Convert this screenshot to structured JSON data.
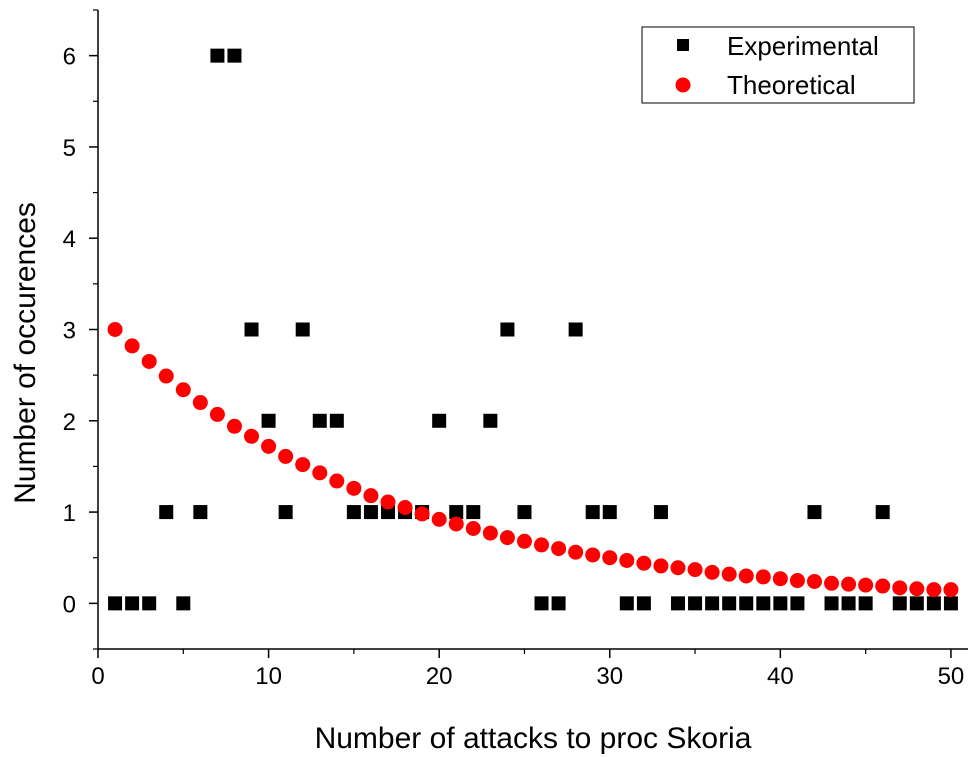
{
  "chart_data": {
    "type": "scatter",
    "title": "",
    "xlabel": "Number of attacks to proc Skoria",
    "ylabel": "Number of occurences",
    "xlim": [
      0,
      51
    ],
    "ylim": [
      -0.5,
      6.5
    ],
    "x_ticks": [
      0,
      10,
      20,
      30,
      40,
      50
    ],
    "y_ticks": [
      0,
      1,
      2,
      3,
      4,
      5,
      6
    ],
    "x_tick_labels": [
      "0",
      "10",
      "20",
      "30",
      "40",
      "50"
    ],
    "y_tick_labels": [
      "0",
      "1",
      "2",
      "3",
      "4",
      "5",
      "6"
    ],
    "grid": false,
    "legend_position": "top-right",
    "series": [
      {
        "name": "Experimental",
        "marker": "square",
        "color": "#000000",
        "x": [
          1,
          2,
          3,
          4,
          5,
          6,
          7,
          8,
          9,
          10,
          11,
          12,
          13,
          14,
          15,
          16,
          17,
          18,
          19,
          20,
          21,
          22,
          23,
          24,
          25,
          26,
          27,
          28,
          29,
          30,
          31,
          32,
          33,
          34,
          35,
          36,
          37,
          38,
          39,
          40,
          41,
          42,
          43,
          44,
          45,
          46,
          47,
          48,
          49,
          50
        ],
        "y": [
          0,
          0,
          0,
          1,
          0,
          1,
          6,
          6,
          3,
          2,
          1,
          3,
          2,
          2,
          1,
          1,
          1,
          1,
          1,
          2,
          1,
          1,
          2,
          3,
          1,
          0,
          0,
          3,
          1,
          1,
          0,
          0,
          1,
          0,
          0,
          0,
          0,
          0,
          0,
          0,
          0,
          1,
          0,
          0,
          0,
          1,
          0,
          0,
          0,
          0
        ]
      },
      {
        "name": "Theoretical",
        "marker": "circle",
        "color": "#ff0000",
        "x": [
          1,
          2,
          3,
          4,
          5,
          6,
          7,
          8,
          9,
          10,
          11,
          12,
          13,
          14,
          15,
          16,
          17,
          18,
          19,
          20,
          21,
          22,
          23,
          24,
          25,
          26,
          27,
          28,
          29,
          30,
          31,
          32,
          33,
          34,
          35,
          36,
          37,
          38,
          39,
          40,
          41,
          42,
          43,
          44,
          45,
          46,
          47,
          48,
          49,
          50
        ],
        "y": [
          3.0,
          2.82,
          2.65,
          2.49,
          2.34,
          2.2,
          2.07,
          1.94,
          1.83,
          1.72,
          1.61,
          1.52,
          1.43,
          1.34,
          1.26,
          1.18,
          1.11,
          1.05,
          0.98,
          0.92,
          0.87,
          0.82,
          0.77,
          0.72,
          0.68,
          0.64,
          0.6,
          0.56,
          0.53,
          0.5,
          0.47,
          0.44,
          0.41,
          0.39,
          0.37,
          0.34,
          0.32,
          0.3,
          0.29,
          0.27,
          0.25,
          0.24,
          0.22,
          0.21,
          0.2,
          0.19,
          0.17,
          0.16,
          0.15,
          0.15
        ]
      }
    ]
  }
}
